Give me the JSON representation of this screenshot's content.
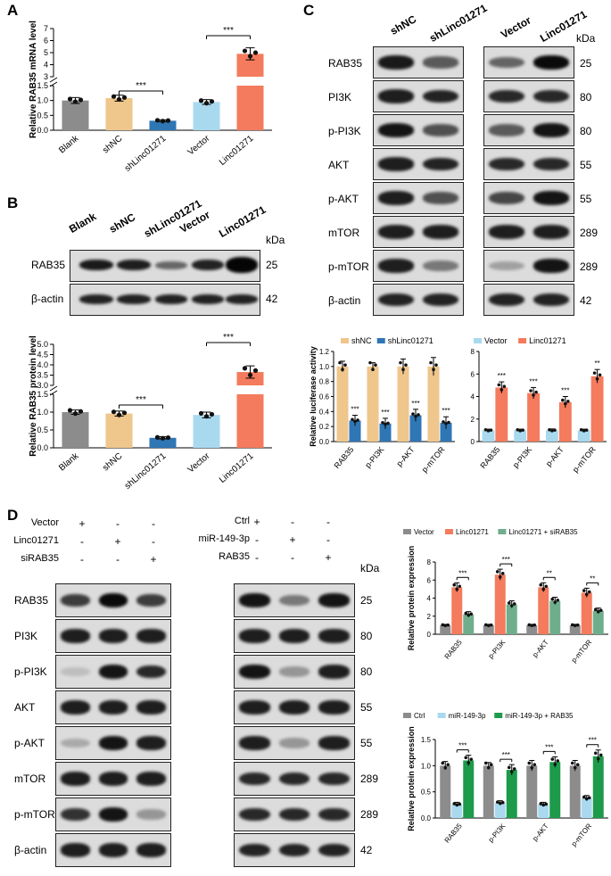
{
  "panels": {
    "A": "A",
    "B": "B",
    "C": "C",
    "D": "D"
  },
  "colors": {
    "blank": "#8c8c8c",
    "shNC": "#efc68b",
    "shLinc": "#2f76b5",
    "vector": "#a9d9ef",
    "linc": "#f47b5d",
    "gray": "#8c8c8c",
    "green": "#6fae8c",
    "darkgreen": "#1d9a4a",
    "lightblue": "#a9d9ef"
  },
  "kda_label": "kDa",
  "panelB_blot": {
    "columns": [
      "Blank",
      "shNC",
      "shLinc01271",
      "Vector",
      "Linc01271"
    ],
    "rows": [
      {
        "label": "RAB35",
        "kda": "25"
      },
      {
        "label": "β-actin",
        "kda": "42"
      }
    ]
  },
  "panelC_blot": {
    "columns_left": [
      "shNC",
      "shLinc01271"
    ],
    "columns_right": [
      "Vector",
      "Linc01271"
    ],
    "rows": [
      {
        "label": "RAB35",
        "kda": "25"
      },
      {
        "label": "PI3K",
        "kda": "80"
      },
      {
        "label": "p-PI3K",
        "kda": "80"
      },
      {
        "label": "AKT",
        "kda": "55"
      },
      {
        "label": "p-AKT",
        "kda": "55"
      },
      {
        "label": "mTOR",
        "kda": "289"
      },
      {
        "label": "p-mTOR",
        "kda": "289"
      },
      {
        "label": "β-actin",
        "kda": "42"
      }
    ]
  },
  "panelD_blot": {
    "left_conditions": [
      {
        "label": "Vector",
        "signs": [
          "+",
          "-",
          "-"
        ]
      },
      {
        "label": "Linc01271",
        "signs": [
          "-",
          "+",
          "-"
        ]
      },
      {
        "label": "siRAB35",
        "signs": [
          "-",
          "-",
          "+"
        ]
      }
    ],
    "right_conditions": [
      {
        "label": "Ctrl",
        "signs": [
          "+",
          "-",
          "-"
        ]
      },
      {
        "label": "miR-149-3p",
        "signs": [
          "-",
          "+",
          "-"
        ]
      },
      {
        "label": "RAB35",
        "signs": [
          "-",
          "-",
          "+"
        ]
      }
    ],
    "rows": [
      {
        "label": "RAB35",
        "kda": "25"
      },
      {
        "label": "PI3K",
        "kda": "80"
      },
      {
        "label": "p-PI3K",
        "kda": "80"
      },
      {
        "label": "AKT",
        "kda": "55"
      },
      {
        "label": "p-AKT",
        "kda": "55"
      },
      {
        "label": "mTOR",
        "kda": "289"
      },
      {
        "label": "p-mTOR",
        "kda": "289"
      },
      {
        "label": "β-actin",
        "kda": "42"
      }
    ]
  },
  "chart_data": [
    {
      "id": "A",
      "type": "bar",
      "ylabel": "Relative RAB35 mRNA level",
      "categories": [
        "Blank",
        "shNC",
        "shLinc01271",
        "Vector",
        "Linc01271"
      ],
      "values": [
        1.0,
        1.08,
        0.32,
        0.95,
        4.9
      ],
      "errors": [
        0.1,
        0.1,
        0.03,
        0.08,
        0.5
      ],
      "ytick_labels_low": [
        "0.0",
        "0.5",
        "1.0",
        "1.5"
      ],
      "ytick_labels_high": [
        "3",
        "4",
        "5",
        "6",
        "7"
      ],
      "broken_axis": true,
      "significance": [
        {
          "between": [
            "shNC",
            "shLinc01271"
          ],
          "label": "***"
        },
        {
          "between": [
            "Vector",
            "Linc01271"
          ],
          "label": "***"
        }
      ]
    },
    {
      "id": "B",
      "type": "bar",
      "ylabel": "Relative RAB35 protein level",
      "categories": [
        "Blank",
        "shNC",
        "shLinc01271",
        "Vector",
        "Linc01271"
      ],
      "values": [
        1.0,
        0.96,
        0.28,
        0.92,
        3.65
      ],
      "errors": [
        0.06,
        0.07,
        0.03,
        0.08,
        0.3
      ],
      "ytick_labels_low": [
        "0.0",
        "0.5",
        "1.0",
        "1.5"
      ],
      "ytick_labels_high": [
        "3.0",
        "3.5",
        "4.0",
        "4.5",
        "5.0"
      ],
      "broken_axis": true,
      "significance": [
        {
          "between": [
            "shNC",
            "shLinc01271"
          ],
          "label": "***"
        },
        {
          "between": [
            "Vector",
            "Linc01271"
          ],
          "label": "***"
        }
      ]
    },
    {
      "id": "C-left",
      "type": "bar",
      "ylabel": "Relative luciferase activity",
      "categories": [
        "RAB35",
        "p-PI3K",
        "p-AKT",
        "p-mTOR"
      ],
      "series": [
        {
          "name": "shNC",
          "values": [
            1.0,
            1.0,
            1.0,
            1.0
          ],
          "errors": [
            0.07,
            0.05,
            0.1,
            0.12
          ]
        },
        {
          "name": "shLinc01271",
          "values": [
            0.28,
            0.24,
            0.35,
            0.25
          ],
          "errors": [
            0.07,
            0.07,
            0.08,
            0.08
          ]
        }
      ],
      "yticks": [
        "0.0",
        "0.2",
        "0.4",
        "0.6",
        "0.8",
        "1.0",
        "1.2"
      ],
      "ylim": [
        0,
        1.2
      ],
      "sig_labels": [
        "***",
        "***",
        "***",
        "***"
      ]
    },
    {
      "id": "C-right",
      "type": "bar",
      "categories": [
        "RAB35",
        "p-PI3K",
        "p-AKT",
        "p-mTOR"
      ],
      "series": [
        {
          "name": "Vector",
          "values": [
            1.0,
            1.0,
            1.0,
            1.0
          ],
          "errors": [
            0.1,
            0.1,
            0.12,
            0.1
          ]
        },
        {
          "name": "Linc01271",
          "values": [
            4.8,
            4.3,
            3.5,
            5.8
          ],
          "errors": [
            0.5,
            0.5,
            0.5,
            0.6
          ]
        }
      ],
      "yticks": [
        "0",
        "2",
        "4",
        "6",
        "8"
      ],
      "ylim": [
        0,
        8
      ],
      "sig_labels": [
        "***",
        "***",
        "***",
        "**"
      ]
    },
    {
      "id": "D-top",
      "type": "bar",
      "ylabel": "Relative protein expression",
      "categories": [
        "RAB35",
        "p-PI3K",
        "p-AKT",
        "p-mTOR"
      ],
      "series": [
        {
          "name": "Vector",
          "values": [
            1.0,
            1.0,
            1.0,
            1.0
          ],
          "errors": [
            0.1,
            0.1,
            0.1,
            0.1
          ]
        },
        {
          "name": "Linc01271",
          "values": [
            5.2,
            6.6,
            5.2,
            4.6
          ],
          "errors": [
            0.5,
            0.6,
            0.5,
            0.5
          ]
        },
        {
          "name": "Linc01271 + siRAB35",
          "values": [
            2.2,
            3.3,
            3.7,
            2.6
          ],
          "errors": [
            0.3,
            0.4,
            0.4,
            0.3
          ]
        }
      ],
      "yticks": [
        "0",
        "2",
        "4",
        "6",
        "8"
      ],
      "ylim": [
        0,
        8
      ],
      "sig_labels": [
        "***",
        "***",
        "**",
        "**"
      ]
    },
    {
      "id": "D-bottom",
      "type": "bar",
      "ylabel": "Relative protein expression",
      "categories": [
        "RAB35",
        "p-PI3K",
        "p-AKT",
        "p-mTOR"
      ],
      "series": [
        {
          "name": "Ctrl",
          "values": [
            1.0,
            1.0,
            1.0,
            1.0
          ],
          "errors": [
            0.08,
            0.06,
            0.1,
            0.1
          ]
        },
        {
          "name": "miR-149-3p",
          "values": [
            0.26,
            0.29,
            0.26,
            0.38
          ],
          "errors": [
            0.04,
            0.04,
            0.04,
            0.05
          ]
        },
        {
          "name": "miR-149-3p + RAB35",
          "values": [
            1.1,
            0.92,
            1.07,
            1.18
          ],
          "errors": [
            0.1,
            0.1,
            0.1,
            0.12
          ]
        }
      ],
      "yticks": [
        "0.0",
        "0.5",
        "1.0",
        "1.5"
      ],
      "ylim": [
        0,
        1.5
      ],
      "sig_labels": [
        "***",
        "***",
        "***",
        "***"
      ]
    }
  ]
}
